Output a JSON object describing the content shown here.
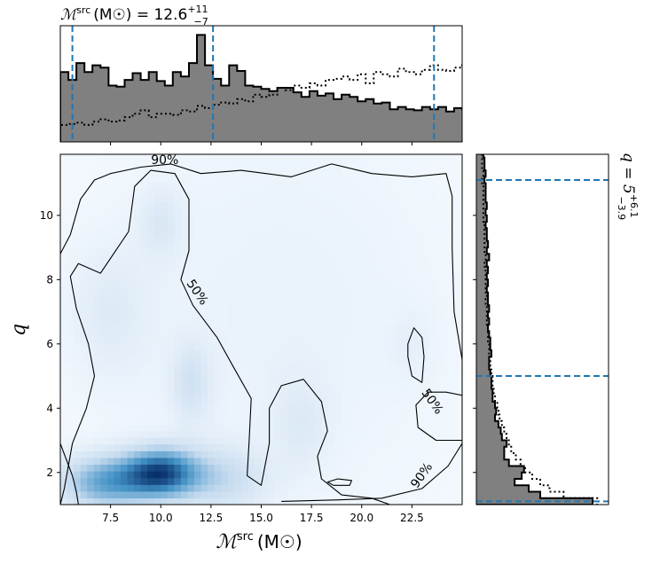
{
  "chart_data": [
    {
      "type": "heatmap",
      "panel": "joint",
      "xlabel": "ℳ",
      "xlabel_sup": "src",
      "xlabel_unit": "(M☉)",
      "ylabel": "q",
      "xlim": [
        5.0,
        25.0
      ],
      "ylim": [
        1.0,
        11.9
      ],
      "x_ticks": [
        7.5,
        10.0,
        12.5,
        15.0,
        17.5,
        20.0,
        22.5
      ],
      "x_tick_labels": [
        "7.5",
        "10.0",
        "12.5",
        "15.0",
        "17.5",
        "20.0",
        "22.5"
      ],
      "y_ticks": [
        2,
        4,
        6,
        8,
        10
      ],
      "y_tick_labels": [
        "2",
        "4",
        "6",
        "8",
        "10"
      ],
      "colormap": "blues",
      "density_blobs": [
        {
          "x": 10.0,
          "y": 2.0,
          "sx": 1.3,
          "sy": 0.55,
          "w": 1.0
        },
        {
          "x": 7.2,
          "y": 1.7,
          "sx": 1.6,
          "sy": 0.6,
          "w": 0.7
        },
        {
          "x": 13.0,
          "y": 1.8,
          "sx": 1.6,
          "sy": 0.7,
          "w": 0.35
        },
        {
          "x": 11.5,
          "y": 4.8,
          "sx": 0.7,
          "sy": 0.9,
          "w": 0.25
        },
        {
          "x": 10.0,
          "y": 9.8,
          "sx": 0.8,
          "sy": 0.8,
          "w": 0.18
        },
        {
          "x": 7.5,
          "y": 7.0,
          "sx": 1.5,
          "sy": 1.5,
          "w": 0.16
        },
        {
          "x": 17.0,
          "y": 3.5,
          "sx": 1.0,
          "sy": 1.0,
          "w": 0.14
        },
        {
          "x": 22.5,
          "y": 6.0,
          "sx": 0.8,
          "sy": 0.8,
          "w": 0.08
        },
        {
          "x": 16.0,
          "y": 7.0,
          "sx": 6.0,
          "sy": 4.5,
          "w": 0.1
        }
      ],
      "contours": [
        {
          "label": "90%",
          "label_points": [
            [
              10.2,
              11.7
            ],
            [
              23.0,
              1.9
            ]
          ]
        },
        {
          "label": "50%",
          "label_points": [
            [
              11.8,
              7.6
            ],
            [
              23.5,
              4.2
            ]
          ]
        }
      ],
      "contour_90_outline": [
        [
          5.0,
          8.8
        ],
        [
          5.5,
          9.4
        ],
        [
          6.0,
          10.5
        ],
        [
          6.7,
          11.1
        ],
        [
          7.5,
          11.3
        ],
        [
          9.0,
          11.5
        ],
        [
          10.5,
          11.6
        ],
        [
          12.0,
          11.3
        ],
        [
          14.0,
          11.4
        ],
        [
          16.5,
          11.2
        ],
        [
          18.5,
          11.6
        ],
        [
          20.5,
          11.3
        ],
        [
          22.5,
          11.2
        ],
        [
          24.2,
          11.3
        ],
        [
          24.5,
          10.6
        ],
        [
          24.5,
          9.0
        ],
        [
          24.6,
          7.0
        ],
        [
          25.0,
          5.5
        ],
        [
          25.0,
          2.9
        ],
        [
          24.3,
          2.2
        ],
        [
          23.0,
          1.5
        ],
        [
          21.0,
          1.2
        ],
        [
          19.0,
          1.15
        ],
        [
          16.0,
          1.1
        ]
      ],
      "contour_90_left_tail": [
        [
          5.0,
          2.9
        ],
        [
          5.3,
          2.4
        ],
        [
          5.6,
          1.9
        ],
        [
          5.8,
          1.4
        ],
        [
          5.9,
          1.0
        ]
      ],
      "contour_90_island": [
        [
          18.3,
          1.7
        ],
        [
          18.8,
          1.8
        ],
        [
          19.5,
          1.75
        ],
        [
          19.4,
          1.6
        ],
        [
          18.6,
          1.6
        ]
      ],
      "contour_50_main": [
        [
          5.0,
          1.0
        ],
        [
          5.2,
          1.5
        ],
        [
          5.6,
          2.9
        ],
        [
          6.3,
          4.0
        ],
        [
          6.7,
          5.0
        ],
        [
          6.4,
          6.0
        ],
        [
          5.8,
          7.1
        ],
        [
          5.5,
          8.1
        ],
        [
          5.9,
          8.5
        ],
        [
          7.0,
          8.2
        ],
        [
          8.4,
          9.5
        ],
        [
          8.7,
          10.9
        ],
        [
          9.5,
          11.4
        ],
        [
          10.7,
          11.3
        ],
        [
          11.4,
          10.5
        ],
        [
          11.4,
          8.9
        ],
        [
          11.0,
          8.0
        ],
        [
          11.6,
          7.2
        ],
        [
          12.8,
          6.2
        ],
        [
          13.6,
          5.3
        ],
        [
          14.5,
          4.3
        ],
        [
          14.4,
          3.0
        ],
        [
          14.3,
          1.9
        ],
        [
          15.0,
          1.6
        ],
        [
          15.4,
          2.9
        ],
        [
          15.4,
          4.0
        ],
        [
          16.0,
          4.7
        ],
        [
          17.1,
          4.9
        ],
        [
          18.0,
          4.2
        ],
        [
          18.3,
          3.3
        ],
        [
          17.8,
          2.5
        ],
        [
          18.0,
          1.8
        ],
        [
          19.0,
          1.3
        ],
        [
          20.5,
          1.2
        ],
        [
          21.4,
          1.0
        ]
      ],
      "contour_50_right": [
        [
          25.0,
          4.4
        ],
        [
          24.2,
          4.5
        ],
        [
          23.3,
          4.5
        ],
        [
          22.7,
          4.1
        ],
        [
          22.8,
          3.4
        ],
        [
          23.7,
          3.0
        ],
        [
          25.0,
          3.0
        ]
      ],
      "contour_50_island": [
        [
          22.3,
          6.0
        ],
        [
          22.6,
          6.5
        ],
        [
          23.0,
          6.2
        ],
        [
          23.1,
          5.6
        ],
        [
          23.0,
          4.8
        ],
        [
          22.5,
          5.0
        ],
        [
          22.3,
          5.6
        ]
      ]
    },
    {
      "type": "bar",
      "panel": "top-marginal",
      "title_prefix": "ℳ",
      "title_sup": "src",
      "title_unit": "(M☉) = 12.6",
      "title_sup_err": "+11",
      "title_sub_err": "−7",
      "xlim": [
        5.0,
        25.0
      ],
      "quantiles": [
        5.6,
        12.6,
        23.6
      ],
      "bin_start": 5.0,
      "bin_width": 0.4,
      "posterior": [
        0.62,
        0.55,
        0.7,
        0.62,
        0.68,
        0.66,
        0.5,
        0.49,
        0.55,
        0.61,
        0.55,
        0.62,
        0.54,
        0.5,
        0.62,
        0.58,
        0.7,
        0.95,
        0.68,
        0.56,
        0.5,
        0.68,
        0.63,
        0.5,
        0.49,
        0.47,
        0.45,
        0.48,
        0.48,
        0.44,
        0.4,
        0.45,
        0.41,
        0.43,
        0.38,
        0.42,
        0.4,
        0.36,
        0.38,
        0.34,
        0.35,
        0.29,
        0.31,
        0.29,
        0.28,
        0.31,
        0.29,
        0.31,
        0.27,
        0.3,
        0.29,
        0.32,
        0.34,
        0.32,
        0.31,
        0.32,
        0.31,
        0.3,
        0.28,
        0.3,
        0.29,
        0.27,
        0.29,
        0.29,
        0.28,
        0.28,
        0.27,
        0.28,
        0.27,
        0.3,
        0.27,
        0.26,
        0.28,
        0.27,
        0.28
      ],
      "prior": [
        0.15,
        0.16,
        0.17,
        0.15,
        0.18,
        0.2,
        0.18,
        0.19,
        0.22,
        0.25,
        0.28,
        0.22,
        0.25,
        0.25,
        0.24,
        0.28,
        0.27,
        0.32,
        0.3,
        0.33,
        0.35,
        0.34,
        0.38,
        0.36,
        0.42,
        0.4,
        0.42,
        0.48,
        0.46,
        0.5,
        0.48,
        0.52,
        0.5,
        0.55,
        0.56,
        0.58,
        0.55,
        0.6,
        0.52,
        0.62,
        0.6,
        0.58,
        0.65,
        0.62,
        0.6,
        0.64,
        0.68,
        0.64,
        0.63,
        0.66,
        0.7,
        0.72,
        0.68,
        0.66,
        0.7,
        0.68,
        0.74,
        0.72,
        0.7,
        0.72,
        0.75,
        0.78,
        0.76,
        0.78,
        0.8,
        0.82,
        0.79,
        0.8,
        0.81,
        0.8,
        0.82,
        0.83,
        0.84,
        0.82,
        0.83
      ]
    },
    {
      "type": "bar",
      "panel": "right-marginal",
      "label_prefix": "q = 5",
      "label_sup_err": "+6.1",
      "label_sub_err": "−3.9",
      "ylim": [
        1.0,
        11.9
      ],
      "quantiles": [
        1.1,
        5.0,
        11.1
      ],
      "bin_start": 1.0,
      "bin_width": 0.2,
      "posterior": [
        1.0,
        0.55,
        0.45,
        0.33,
        0.39,
        0.41,
        0.28,
        0.24,
        0.24,
        0.26,
        0.22,
        0.21,
        0.19,
        0.16,
        0.17,
        0.16,
        0.14,
        0.14,
        0.13,
        0.13,
        0.12,
        0.11,
        0.11,
        0.13,
        0.12,
        0.12,
        0.11,
        0.1,
        0.11,
        0.1,
        0.11,
        0.1,
        0.1,
        0.09,
        0.1,
        0.09,
        0.1,
        0.09,
        0.11,
        0.09,
        0.1,
        0.09,
        0.09,
        0.08,
        0.09,
        0.08,
        0.09,
        0.08,
        0.08,
        0.08,
        0.07,
        0.08,
        0.07,
        0.07,
        0.06,
        0.06
      ],
      "prior": [
        1.05,
        0.75,
        0.63,
        0.55,
        0.48,
        0.42,
        0.38,
        0.34,
        0.3,
        0.28,
        0.26,
        0.24,
        0.22,
        0.2,
        0.19,
        0.18,
        0.16,
        0.15,
        0.14,
        0.14,
        0.13,
        0.12,
        0.12,
        0.11,
        0.11,
        0.1,
        0.1,
        0.1,
        0.09,
        0.09,
        0.09,
        0.08,
        0.09,
        0.08,
        0.08,
        0.08,
        0.08,
        0.07,
        0.08,
        0.07,
        0.07,
        0.07,
        0.07,
        0.07,
        0.06,
        0.06,
        0.06,
        0.06,
        0.06,
        0.06,
        0.05,
        0.06,
        0.05,
        0.05,
        0.05,
        0.05
      ]
    }
  ],
  "colors": {
    "posterior_fill": "#808080",
    "quantile_line": "#1f77b4",
    "cmap_low": "#f7fbff",
    "cmap_high": "#08306b"
  }
}
